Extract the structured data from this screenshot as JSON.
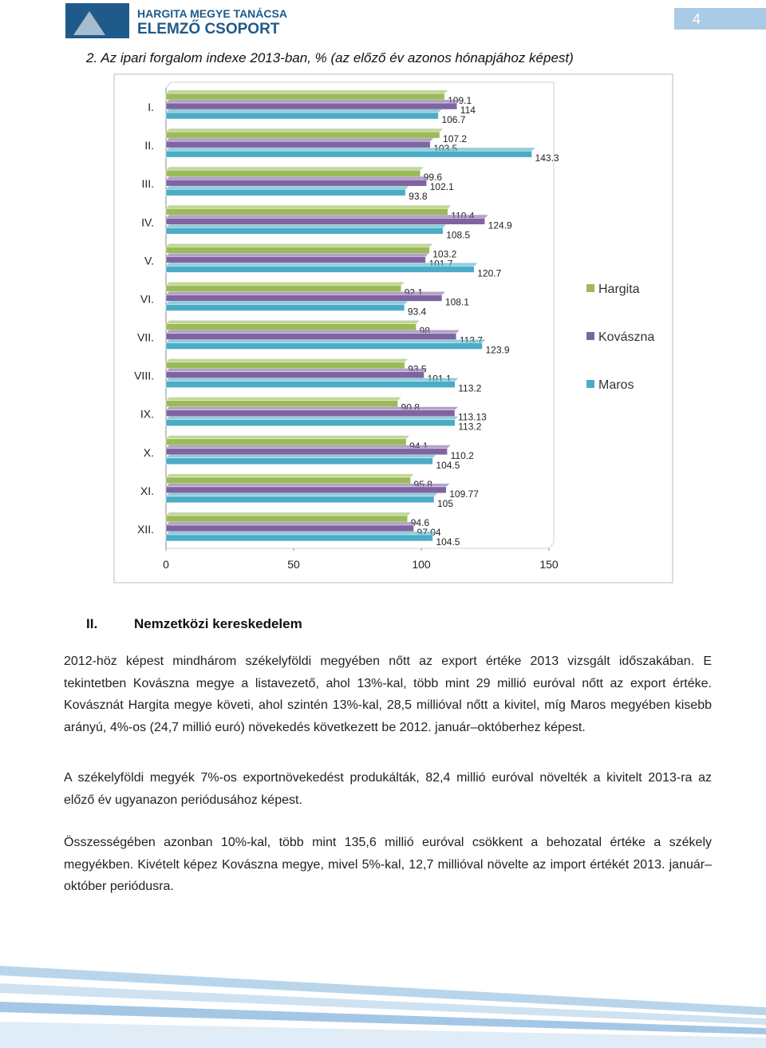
{
  "header": {
    "org": "HARGITA MEGYE TANÁCSA",
    "unit": "ELEMZŐ CSOPORT",
    "page": "4"
  },
  "chart_data": {
    "type": "bar",
    "orientation": "horizontal",
    "title": "2.  Az ipari forgalom indexe 2013-ban, % (az előző év azonos hónapjához képest)",
    "categories": [
      "I.",
      "II.",
      "III.",
      "IV.",
      "V.",
      "VI.",
      "VII.",
      "VIII.",
      "IX.",
      "X.",
      "XI.",
      "XII."
    ],
    "series": [
      {
        "name": "Hargita",
        "color": "#9bbb59",
        "values": [
          109.1,
          107.2,
          99.6,
          110.4,
          103.2,
          92.1,
          98,
          93.5,
          90.8,
          94.1,
          95.8,
          94.6
        ]
      },
      {
        "name": "Kovászna",
        "color": "#8064a2",
        "values": [
          114,
          103.5,
          102.1,
          124.9,
          101.7,
          108.1,
          113.7,
          101.1,
          113.13,
          110.2,
          109.77,
          97.04
        ]
      },
      {
        "name": "Maros",
        "color": "#4bacc6",
        "values": [
          106.7,
          143.3,
          93.8,
          108.5,
          120.7,
          93.4,
          123.9,
          113.2,
          113.2,
          104.5,
          105,
          104.5
        ]
      }
    ],
    "xlim": [
      0,
      150
    ],
    "xticks": [
      0,
      50,
      100,
      150
    ],
    "legend": "right",
    "grid": false
  },
  "section": {
    "number": "II.",
    "title": "Nemzetközi kereskedelem"
  },
  "paragraphs": [
    "2012-höz képest mindhárom székelyföldi megyében nőtt az export értéke 2013 vizsgált időszakában. E tekintetben Kovászna megye a listavezető, ahol 13%-kal, több mint 29 millió euróval nőtt az export értéke. Kovásznát Hargita megye követi, ahol szintén 13%-kal, 28,5 millióval nőtt a kivitel, míg Maros megyében kisebb arányú, 4%-os (24,7 millió euró) növekedés következett be 2012. január–októberhez képest.",
    "A székelyföldi megyék 7%-os exportnövekedést produkálták, 82,4 millió euróval növelték a kivitelt 2013-ra az előző év ugyanazon periódusához képest.",
    "Összességében azonban 10%-kal, több mint 135,6 millió euróval csökkent a behozatal értéke a székely megyékben. Kivételt képez Kovászna megye, mivel 5%-kal, 12,7 millióval növelte az import értékét 2013. január–október periódusra."
  ]
}
